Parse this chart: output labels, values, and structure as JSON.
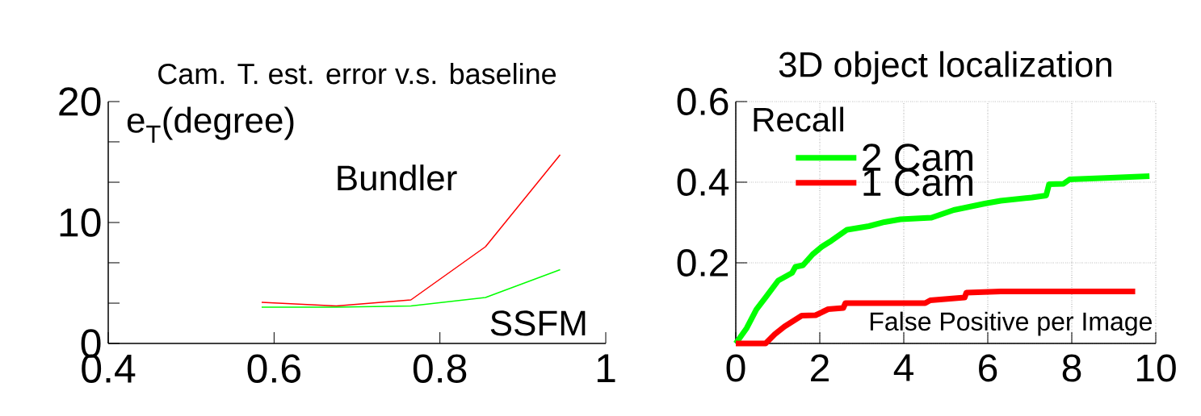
{
  "chart_data": [
    {
      "type": "line",
      "title": "Cam. T. est. error v.s. baseline",
      "ylabel": "e$_{T}$(degree)",
      "xlim": [
        0.4,
        1
      ],
      "ylim": [
        0,
        20
      ],
      "xticks": [
        0.4,
        0.6,
        0.8,
        1
      ],
      "yticks": [
        0,
        {
          "value": 3.33,
          "label": null
        },
        {
          "value": 6.67,
          "label": null
        },
        10,
        {
          "value": 13.33,
          "label": null
        },
        {
          "value": 16.67,
          "label": null
        },
        20
      ],
      "grid": false,
      "legend": false,
      "series": [
        {
          "name": "Bundler",
          "color": "#ff0000",
          "x": [
            0.585,
            0.675,
            0.765,
            0.855,
            0.945
          ],
          "values": [
            3.4,
            3.1,
            3.6,
            8.0,
            15.6
          ]
        },
        {
          "name": "SSFM",
          "color": "#00ff00",
          "x": [
            0.585,
            0.675,
            0.765,
            0.855,
            0.945
          ],
          "values": [
            3.0,
            3.0,
            3.1,
            3.8,
            6.1
          ]
        }
      ]
    },
    {
      "type": "line",
      "title": "3D object localization",
      "ylabel": "Recall",
      "xlabel": "False Positive per Image",
      "xlim": [
        0,
        10
      ],
      "ylim": [
        0,
        0.6
      ],
      "xticks": [
        0,
        2,
        4,
        6,
        8,
        10
      ],
      "yticks": [
        {
          "value": 0,
          "label": null
        },
        0.2,
        0.4,
        0.6
      ],
      "grid": true,
      "legend": "top left",
      "series": [
        {
          "name": "2 Cam",
          "color": "#00ff00",
          "x": [
            0,
            0.26,
            0.49,
            0.71,
            1.01,
            1.34,
            1.42,
            1.6,
            1.83,
            2.05,
            2.28,
            2.65,
            3.17,
            3.54,
            3.92,
            4.66,
            5.19,
            5.93,
            6.31,
            7.05,
            7.39,
            7.46,
            7.8,
            7.95,
            8.92,
            9.85
          ],
          "values": [
            0,
            0.038,
            0.084,
            0.114,
            0.156,
            0.175,
            0.19,
            0.194,
            0.221,
            0.24,
            0.255,
            0.282,
            0.291,
            0.301,
            0.308,
            0.312,
            0.331,
            0.347,
            0.354,
            0.362,
            0.367,
            0.395,
            0.396,
            0.407,
            0.411,
            0.415
          ]
        },
        {
          "name": "1 Cam",
          "color": "#ff0000",
          "x": [
            0,
            0.71,
            0.93,
            1.16,
            1.57,
            1.9,
            2.2,
            2.56,
            2.61,
            4.51,
            4.63,
            5.45,
            5.49,
            6.31,
            9.51
          ],
          "values": [
            0,
            0,
            0.023,
            0.042,
            0.069,
            0.07,
            0.085,
            0.088,
            0.1,
            0.1,
            0.107,
            0.114,
            0.126,
            0.129,
            0.129
          ]
        }
      ]
    }
  ]
}
